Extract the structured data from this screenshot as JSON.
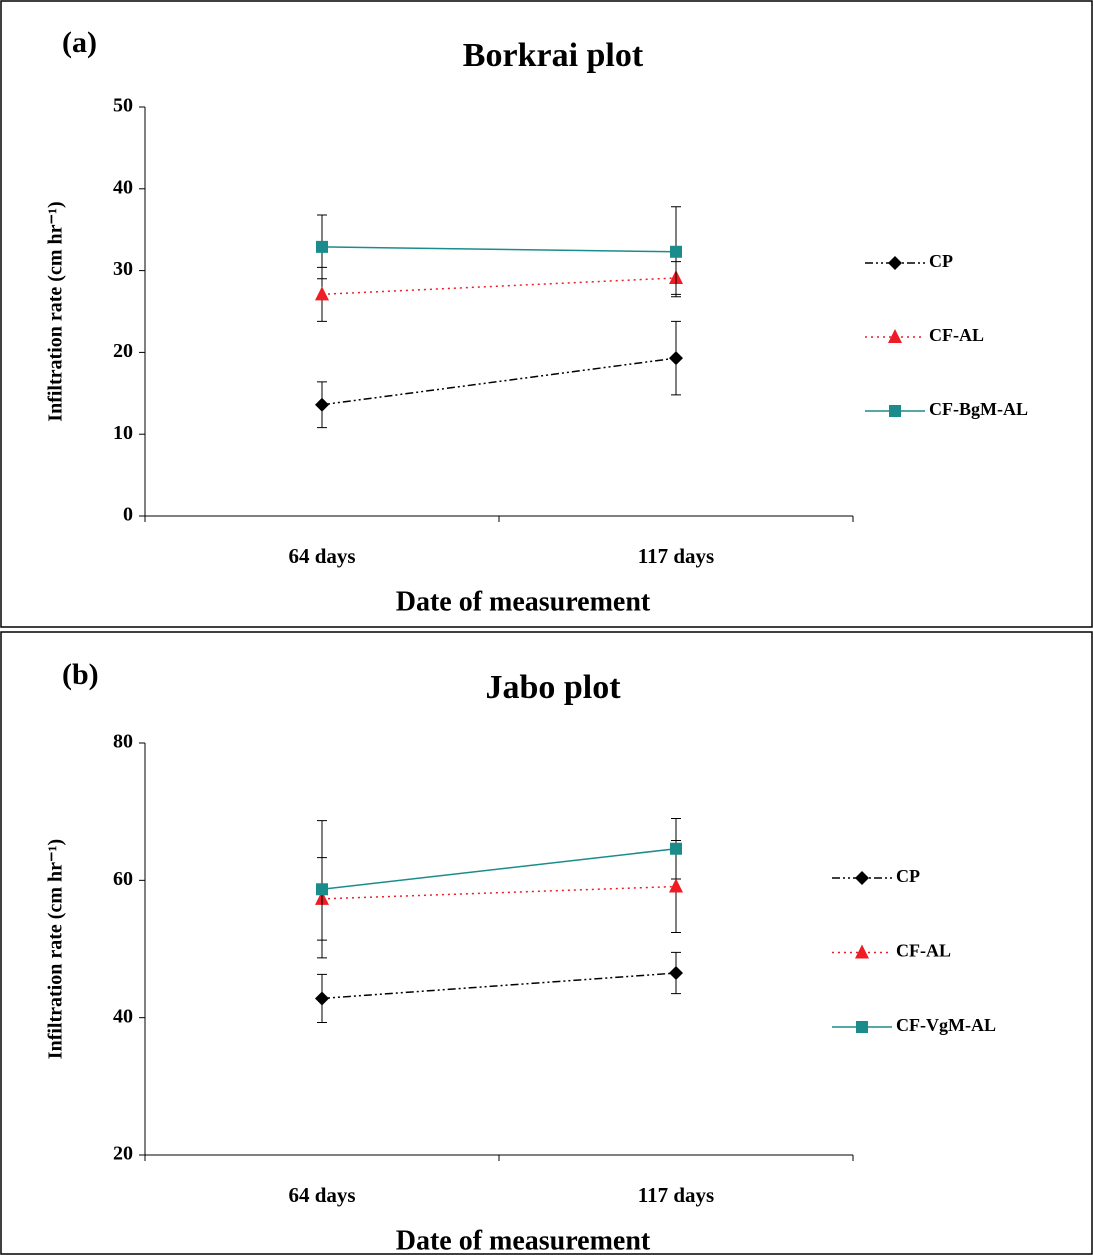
{
  "chart_data": [
    {
      "type": "line",
      "panel_label": "(a)",
      "title": "Borkrai plot",
      "x_label": "Date of measurement",
      "y_label": "Infiltration rate (cm hr⁻¹)",
      "categories": [
        "64 days",
        "117 days"
      ],
      "ylim": [
        0,
        50
      ],
      "yticks": [
        0,
        10,
        20,
        30,
        40,
        50
      ],
      "series": [
        {
          "name": "CP",
          "color": "#000000",
          "marker": "diamond",
          "dash": "8 3 2 3 2 3",
          "values": [
            13.6,
            19.3
          ],
          "errors": [
            2.8,
            4.5
          ]
        },
        {
          "name": "CF-AL",
          "color": "#ee1c25",
          "marker": "triangle",
          "dash": "2 4",
          "values": [
            27.1,
            29.1
          ],
          "errors": [
            3.3,
            2.0
          ]
        },
        {
          "name": "CF-BgM-AL",
          "color": "#1a8c8c",
          "marker": "square",
          "dash": "none",
          "values": [
            32.9,
            32.3
          ],
          "errors": [
            3.9,
            5.5
          ]
        }
      ]
    },
    {
      "type": "line",
      "panel_label": "(b)",
      "title": "Jabo plot",
      "x_label": "Date of measurement",
      "y_label": "Infiltration rate (cm hr⁻¹)",
      "categories": [
        "64 days",
        "117 days"
      ],
      "ylim": [
        20,
        80
      ],
      "yticks": [
        20,
        40,
        60,
        80
      ],
      "series": [
        {
          "name": "CP",
          "color": "#000000",
          "marker": "diamond",
          "dash": "8 3 2 3 2 3",
          "values": [
            42.8,
            46.5
          ],
          "errors": [
            3.5,
            3.0
          ]
        },
        {
          "name": "CF-AL",
          "color": "#ee1c25",
          "marker": "triangle",
          "dash": "2 4",
          "values": [
            57.3,
            59.1
          ],
          "errors": [
            6.0,
            6.7
          ]
        },
        {
          "name": "CF-VgM-AL",
          "color": "#1a8c8c",
          "marker": "square",
          "dash": "none",
          "values": [
            58.7,
            64.6
          ],
          "errors": [
            10.0,
            4.4
          ]
        }
      ]
    }
  ]
}
